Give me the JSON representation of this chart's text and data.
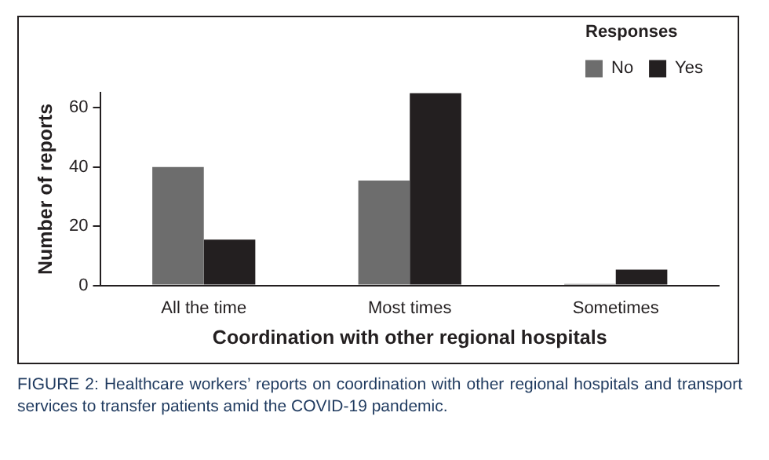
{
  "chart_data": {
    "type": "bar",
    "xlabel": "Coordination with other regional hospitals",
    "ylabel": "Number of reports",
    "legend_title": "Responses",
    "categories": [
      "All the time",
      "Most times",
      "Sometimes"
    ],
    "series": [
      {
        "name": "No",
        "color": "#6d6d6d",
        "values": [
          40,
          35.4,
          0.5
        ]
      },
      {
        "name": "Yes",
        "color": "#231f20",
        "values": [
          15.5,
          65,
          5.3
        ]
      }
    ],
    "ylim": [
      0,
      65
    ],
    "yticks": [
      0,
      20,
      40,
      60
    ],
    "grid": false,
    "legend": "top right",
    "annotations": [
      "FIGURE 2: Healthcare workers’ reports on coordination with other regional hospitals and transport services to transfer patients amid the COVID-19 pandemic."
    ]
  }
}
